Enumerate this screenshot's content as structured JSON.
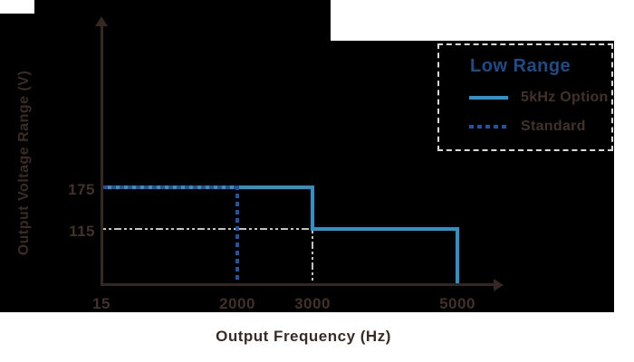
{
  "figure": {
    "background_color": "#000000",
    "margin_color": "#ffffff",
    "axis_color": "#362723",
    "text_color": "#42302a"
  },
  "chart_data": {
    "type": "line",
    "subtype": "step",
    "title": "",
    "xlabel": "Output Frequency (Hz)",
    "ylabel": "Output Voltage Range (V)",
    "x_ticks": [
      "15",
      "2000",
      "3000",
      "5000"
    ],
    "y_ticks": [
      "175",
      "115"
    ],
    "xlim": [
      15,
      5000
    ],
    "ylim": [
      0,
      210
    ],
    "grid": false,
    "legend": {
      "title": "Low Range",
      "title_color": "#1b4d8c",
      "position": "top-right",
      "border_style": "dashed",
      "border_color": "#d9d9d9",
      "entries": [
        {
          "label": "5kHz Option",
          "line_style": "solid",
          "color": "#2b92ca"
        },
        {
          "label": "Standard",
          "line_style": "dashed",
          "color": "#2153a0"
        }
      ]
    },
    "series": [
      {
        "name": "5kHz Option",
        "style": "solid",
        "color": "#2b92ca",
        "points_hz_v": [
          [
            15,
            175
          ],
          [
            3000,
            175
          ],
          [
            3000,
            115
          ],
          [
            5000,
            115
          ],
          [
            5000,
            0
          ]
        ]
      },
      {
        "name": "Standard",
        "style": "dashed",
        "color": "#2153a0",
        "points_hz_v": [
          [
            15,
            175
          ],
          [
            2000,
            175
          ],
          [
            2000,
            0
          ]
        ]
      }
    ],
    "guide_lines": [
      {
        "color": "#c2c2c2",
        "style": "dash-dot",
        "points_hz_v": [
          [
            15,
            115
          ],
          [
            3000,
            115
          ],
          [
            3000,
            0
          ]
        ]
      }
    ]
  }
}
